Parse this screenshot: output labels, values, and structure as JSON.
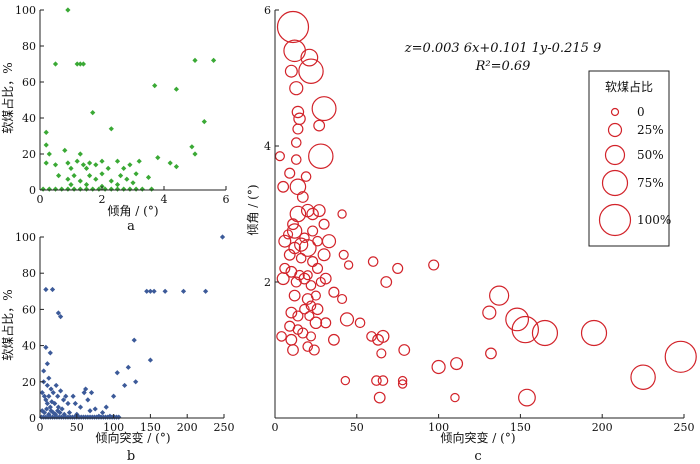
{
  "chart_data": [
    {
      "id": "a",
      "type": "scatter",
      "panel_label": "a",
      "xlabel": "倾角 / (°)",
      "ylabel": "软煤占比，%",
      "xlim": [
        0,
        6
      ],
      "ylim": [
        0,
        100
      ],
      "xticks": [
        0,
        2,
        4,
        6
      ],
      "yticks": [
        0,
        20,
        40,
        60,
        80,
        100
      ],
      "marker": "diamond",
      "color": "#3aa935",
      "points": [
        [
          0.9,
          100
        ],
        [
          0.5,
          70
        ],
        [
          1.2,
          70
        ],
        [
          1.3,
          70
        ],
        [
          1.4,
          70
        ],
        [
          5.0,
          72
        ],
        [
          5.6,
          72
        ],
        [
          3.7,
          58
        ],
        [
          4.4,
          56
        ],
        [
          1.7,
          43
        ],
        [
          5.3,
          38
        ],
        [
          0.2,
          32
        ],
        [
          2.3,
          34
        ],
        [
          0.2,
          25
        ],
        [
          4.9,
          24
        ],
        [
          0.3,
          20
        ],
        [
          5.0,
          20
        ],
        [
          0.8,
          22
        ],
        [
          1.3,
          20
        ],
        [
          0.2,
          15
        ],
        [
          0.5,
          14
        ],
        [
          0.9,
          15
        ],
        [
          1.0,
          12
        ],
        [
          1.2,
          16
        ],
        [
          1.4,
          14
        ],
        [
          1.5,
          12
        ],
        [
          1.6,
          15
        ],
        [
          1.8,
          14
        ],
        [
          2.0,
          16
        ],
        [
          2.2,
          12
        ],
        [
          2.5,
          16
        ],
        [
          2.7,
          12
        ],
        [
          2.9,
          14
        ],
        [
          3.2,
          16
        ],
        [
          3.8,
          18
        ],
        [
          4.2,
          15
        ],
        [
          4.4,
          13
        ],
        [
          0.6,
          8
        ],
        [
          0.9,
          6
        ],
        [
          1.1,
          8
        ],
        [
          1.3,
          5
        ],
        [
          1.6,
          8
        ],
        [
          1.8,
          6
        ],
        [
          2.0,
          9
        ],
        [
          2.3,
          5
        ],
        [
          2.6,
          8
        ],
        [
          2.8,
          6
        ],
        [
          3.1,
          9
        ],
        [
          3.5,
          7
        ],
        [
          1.0,
          3
        ],
        [
          1.5,
          3
        ],
        [
          2.0,
          2
        ],
        [
          2.5,
          3
        ],
        [
          3.0,
          4
        ],
        [
          0.1,
          0.5
        ],
        [
          0.3,
          0.5
        ],
        [
          0.5,
          0.5
        ],
        [
          0.7,
          0.5
        ],
        [
          0.9,
          0.5
        ],
        [
          1.1,
          0.5
        ],
        [
          1.3,
          0.5
        ],
        [
          1.5,
          0.5
        ],
        [
          1.7,
          0.5
        ],
        [
          1.9,
          0.5
        ],
        [
          2.1,
          0.5
        ],
        [
          2.3,
          0.5
        ],
        [
          2.5,
          0.5
        ],
        [
          2.7,
          0.5
        ],
        [
          2.9,
          0.5
        ],
        [
          3.1,
          0.5
        ],
        [
          3.3,
          0.5
        ],
        [
          3.6,
          0.5
        ]
      ]
    },
    {
      "id": "b",
      "type": "scatter",
      "panel_label": "b",
      "xlabel": "倾向突变 / (°)",
      "ylabel": "软煤占比，%",
      "xlim": [
        0,
        250
      ],
      "ylim": [
        0,
        100
      ],
      "xticks": [
        0,
        50,
        100,
        150,
        200,
        250
      ],
      "yticks": [
        0,
        20,
        40,
        60,
        80,
        100
      ],
      "marker": "diamond",
      "color": "#3c5a99",
      "points": [
        [
          248,
          100
        ],
        [
          8,
          71
        ],
        [
          17,
          71
        ],
        [
          145,
          70
        ],
        [
          150,
          70
        ],
        [
          155,
          70
        ],
        [
          170,
          70
        ],
        [
          195,
          70
        ],
        [
          225,
          70
        ],
        [
          25,
          58
        ],
        [
          28,
          56
        ],
        [
          8,
          39
        ],
        [
          14,
          36
        ],
        [
          128,
          43
        ],
        [
          150,
          32
        ],
        [
          5,
          26
        ],
        [
          10,
          30
        ],
        [
          120,
          28
        ],
        [
          105,
          25
        ],
        [
          130,
          20
        ],
        [
          115,
          18
        ],
        [
          5,
          20
        ],
        [
          10,
          18
        ],
        [
          12,
          22
        ],
        [
          15,
          16
        ],
        [
          18,
          14
        ],
        [
          22,
          18
        ],
        [
          24,
          12
        ],
        [
          28,
          15
        ],
        [
          32,
          10
        ],
        [
          35,
          12
        ],
        [
          3,
          14
        ],
        [
          6,
          12
        ],
        [
          8,
          10
        ],
        [
          10,
          8
        ],
        [
          12,
          12
        ],
        [
          14,
          6
        ],
        [
          16,
          9
        ],
        [
          20,
          8
        ],
        [
          25,
          6
        ],
        [
          30,
          5
        ],
        [
          38,
          8
        ],
        [
          45,
          12
        ],
        [
          48,
          8
        ],
        [
          55,
          6
        ],
        [
          60,
          14
        ],
        [
          62,
          16
        ],
        [
          65,
          10
        ],
        [
          70,
          14
        ],
        [
          75,
          5
        ],
        [
          90,
          6
        ],
        [
          100,
          12
        ],
        [
          3,
          4
        ],
        [
          6,
          3
        ],
        [
          9,
          5
        ],
        [
          12,
          2
        ],
        [
          15,
          4
        ],
        [
          18,
          3
        ],
        [
          21,
          2
        ],
        [
          24,
          4
        ],
        [
          27,
          3
        ],
        [
          33,
          2
        ],
        [
          40,
          3
        ],
        [
          50,
          2
        ],
        [
          68,
          4
        ],
        [
          80,
          1
        ],
        [
          85,
          3
        ],
        [
          95,
          1
        ],
        [
          2,
          0.5
        ],
        [
          5,
          0.5
        ],
        [
          8,
          0.5
        ],
        [
          11,
          0.5
        ],
        [
          14,
          0.5
        ],
        [
          17,
          0.5
        ],
        [
          20,
          0.5
        ],
        [
          23,
          0.5
        ],
        [
          26,
          0.5
        ],
        [
          29,
          0.5
        ],
        [
          32,
          0.5
        ],
        [
          35,
          0.5
        ],
        [
          38,
          0.5
        ],
        [
          41,
          0.5
        ],
        [
          44,
          0.5
        ],
        [
          47,
          0.5
        ],
        [
          50,
          0.5
        ],
        [
          53,
          0.5
        ],
        [
          56,
          0.5
        ],
        [
          59,
          0.5
        ],
        [
          62,
          0.5
        ],
        [
          65,
          0.5
        ],
        [
          68,
          0.5
        ],
        [
          71,
          0.5
        ],
        [
          74,
          0.5
        ],
        [
          77,
          0.5
        ],
        [
          80,
          0.5
        ],
        [
          83,
          0.5
        ],
        [
          86,
          0.5
        ],
        [
          89,
          0.5
        ],
        [
          92,
          0.5
        ],
        [
          95,
          0.5
        ],
        [
          98,
          0.5
        ],
        [
          101,
          0.5
        ],
        [
          104,
          0.5
        ],
        [
          107,
          0.5
        ]
      ]
    },
    {
      "id": "c",
      "type": "bubble",
      "panel_label": "c",
      "xlabel": "倾向突变 / (°)",
      "ylabel": "倾角 / (°)",
      "xlim": [
        0,
        250
      ],
      "ylim": [
        0,
        6
      ],
      "xticks": [
        0,
        50,
        100,
        150,
        200,
        250
      ],
      "yticks": [
        2,
        4,
        6
      ],
      "color": "#d2232a",
      "equation": "z=0.003 6x+0.101 1y-0.215 9",
      "r_squared": "R²=0.69",
      "legend": {
        "title": "软煤占比",
        "entries": [
          {
            "label": "0",
            "value": 0
          },
          {
            "label": "25%",
            "value": 25
          },
          {
            "label": "50%",
            "value": 50
          },
          {
            "label": "75%",
            "value": 75
          },
          {
            "label": "100%",
            "value": 100
          }
        ]
      },
      "points": [
        [
          11,
          5.75,
          100
        ],
        [
          12,
          5.4,
          60
        ],
        [
          21,
          5.3,
          40
        ],
        [
          22,
          5.1,
          72
        ],
        [
          10,
          5.1,
          20
        ],
        [
          13,
          4.85,
          25
        ],
        [
          30,
          4.55,
          70
        ],
        [
          14,
          4.5,
          18
        ],
        [
          15,
          4.4,
          18
        ],
        [
          14,
          4.25,
          12
        ],
        [
          27,
          4.3,
          15
        ],
        [
          13,
          4.05,
          10
        ],
        [
          3,
          3.85,
          8
        ],
        [
          13,
          3.8,
          10
        ],
        [
          28,
          3.85,
          72
        ],
        [
          9,
          3.6,
          12
        ],
        [
          19,
          3.55,
          10
        ],
        [
          14,
          3.4,
          35
        ],
        [
          5,
          3.4,
          15
        ],
        [
          17,
          3.25,
          15
        ],
        [
          20,
          3.05,
          22
        ],
        [
          23,
          3.0,
          18
        ],
        [
          27,
          3.05,
          20
        ],
        [
          14,
          3.0,
          35
        ],
        [
          11,
          2.85,
          15
        ],
        [
          12,
          2.75,
          30
        ],
        [
          8,
          2.7,
          8
        ],
        [
          18,
          2.65,
          10
        ],
        [
          23,
          2.75,
          12
        ],
        [
          30,
          2.85,
          12
        ],
        [
          41,
          3.0,
          5
        ],
        [
          6,
          2.6,
          20
        ],
        [
          12,
          2.5,
          18
        ],
        [
          16,
          2.55,
          25
        ],
        [
          20,
          2.5,
          40
        ],
        [
          26,
          2.6,
          10
        ],
        [
          33,
          2.6,
          25
        ],
        [
          9,
          2.4,
          15
        ],
        [
          16,
          2.35,
          10
        ],
        [
          23,
          2.3,
          12
        ],
        [
          30,
          2.4,
          20
        ],
        [
          42,
          2.4,
          8
        ],
        [
          6,
          2.2,
          12
        ],
        [
          10,
          2.15,
          15
        ],
        [
          15,
          2.1,
          10
        ],
        [
          20,
          2.1,
          8
        ],
        [
          26,
          2.2,
          12
        ],
        [
          45,
          2.25,
          5
        ],
        [
          60,
          2.3,
          10
        ],
        [
          75,
          2.2,
          12
        ],
        [
          97,
          2.25,
          12
        ],
        [
          5,
          2.05,
          20
        ],
        [
          13,
          2.0,
          12
        ],
        [
          18,
          2.05,
          15
        ],
        [
          22,
          1.95,
          10
        ],
        [
          28,
          2.0,
          8
        ],
        [
          31,
          2.05,
          15
        ],
        [
          68,
          2.0,
          15
        ],
        [
          12,
          1.8,
          15
        ],
        [
          20,
          1.75,
          15
        ],
        [
          25,
          1.8,
          8
        ],
        [
          36,
          1.85,
          12
        ],
        [
          18,
          1.6,
          10
        ],
        [
          22,
          1.65,
          10
        ],
        [
          26,
          1.6,
          15
        ],
        [
          41,
          1.75,
          8
        ],
        [
          10,
          1.55,
          15
        ],
        [
          14,
          1.5,
          12
        ],
        [
          21,
          1.5,
          8
        ],
        [
          9,
          1.35,
          12
        ],
        [
          14,
          1.3,
          10
        ],
        [
          25,
          1.4,
          18
        ],
        [
          31,
          1.4,
          12
        ],
        [
          44,
          1.45,
          25
        ],
        [
          52,
          1.4,
          10
        ],
        [
          131,
          1.55,
          25
        ],
        [
          137,
          1.8,
          50
        ],
        [
          4,
          1.2,
          10
        ],
        [
          10,
          1.15,
          15
        ],
        [
          17,
          1.25,
          12
        ],
        [
          22,
          1.2,
          8
        ],
        [
          36,
          1.15,
          15
        ],
        [
          59,
          1.2,
          10
        ],
        [
          63,
          1.15,
          15
        ],
        [
          66,
          1.2,
          20
        ],
        [
          148,
          1.45,
          65
        ],
        [
          153,
          1.3,
          80
        ],
        [
          165,
          1.25,
          75
        ],
        [
          195,
          1.25,
          75
        ],
        [
          11,
          1.0,
          15
        ],
        [
          20,
          1.05,
          10
        ],
        [
          24,
          1.0,
          12
        ],
        [
          65,
          0.95,
          8
        ],
        [
          79,
          1.0,
          15
        ],
        [
          132,
          0.95,
          15
        ],
        [
          248,
          0.9,
          100
        ],
        [
          111,
          0.8,
          20
        ],
        [
          100,
          0.75,
          25
        ],
        [
          225,
          0.6,
          72
        ],
        [
          43,
          0.55,
          5
        ],
        [
          62,
          0.55,
          10
        ],
        [
          66,
          0.55,
          10
        ],
        [
          78,
          0.55,
          5
        ],
        [
          78,
          0.5,
          5
        ],
        [
          64,
          0.3,
          15
        ],
        [
          110,
          0.3,
          5
        ],
        [
          154,
          0.3,
          40
        ]
      ]
    }
  ]
}
